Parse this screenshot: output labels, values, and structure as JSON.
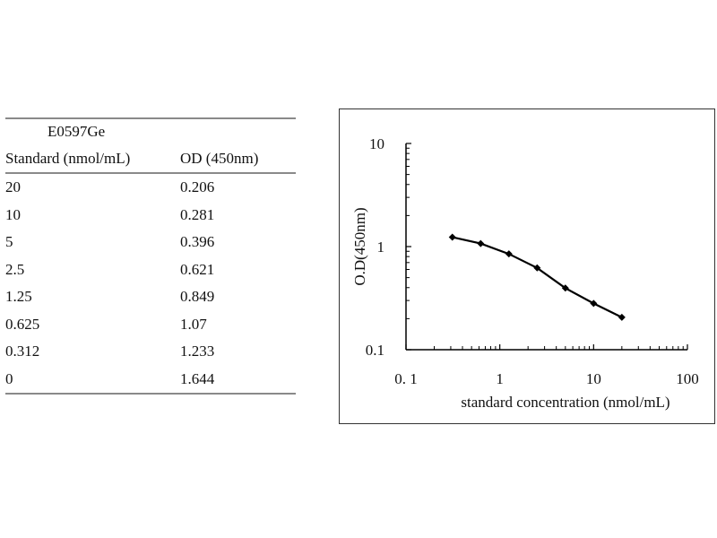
{
  "table": {
    "title": "E0597Ge",
    "headers": [
      "Standard (nmol/mL)",
      "OD (450nm)"
    ],
    "rows": [
      [
        "20",
        "0.206"
      ],
      [
        "10",
        "0.281"
      ],
      [
        "5",
        "0.396"
      ],
      [
        "2.5",
        "0.621"
      ],
      [
        "1.25",
        "0.849"
      ],
      [
        "0.625",
        "1.07"
      ],
      [
        "0.312",
        "1.233"
      ],
      [
        "0",
        "1.644"
      ]
    ]
  },
  "chart_data": {
    "type": "line",
    "x_scale": "log",
    "y_scale": "log",
    "xlim": [
      0.1,
      100
    ],
    "ylim": [
      0.1,
      10
    ],
    "x_ticks": [
      "0. 1",
      "1",
      "10",
      "100"
    ],
    "y_ticks": [
      "0.1",
      "1",
      "10"
    ],
    "xlabel": "standard concentration (nmol/mL)",
    "ylabel": "O.D(450nm)",
    "grid": false,
    "series": [
      {
        "x": [
          0.312,
          0.625,
          1.25,
          2.5,
          5,
          10,
          20
        ],
        "y": [
          1.233,
          1.07,
          0.849,
          0.621,
          0.396,
          0.281,
          0.206
        ],
        "color": "#000000",
        "marker": "diamond"
      }
    ]
  }
}
